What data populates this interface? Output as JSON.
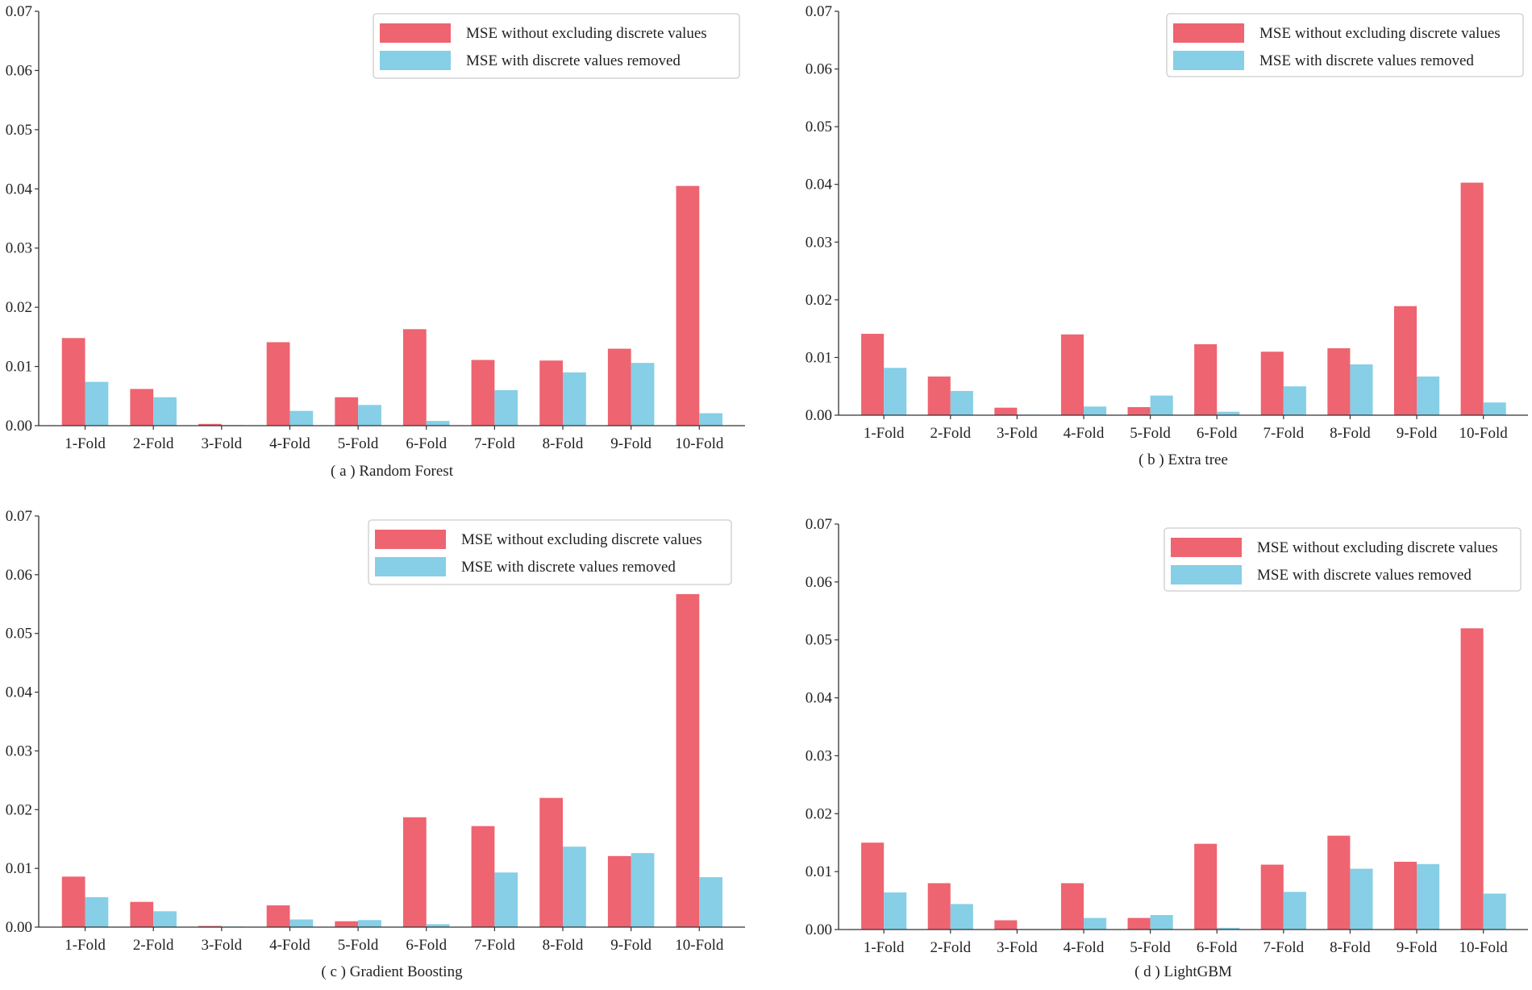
{
  "colors": {
    "series_a": "#ee6470",
    "series_b": "#86cfe6",
    "axis": "#333333",
    "legend_border": "#cccccc"
  },
  "legend": {
    "series_a": "MSE without excluding discrete values",
    "series_b": "MSE with discrete values removed"
  },
  "chart_data": [
    {
      "type": "bar",
      "title": "( a ) Random Forest",
      "categories": [
        "1-Fold",
        "2-Fold",
        "3-Fold",
        "4-Fold",
        "5-Fold",
        "6-Fold",
        "7-Fold",
        "8-Fold",
        "9-Fold",
        "10-Fold"
      ],
      "ylim": [
        0,
        0.07
      ],
      "yticks": [
        "0.00",
        "0.01",
        "0.02",
        "0.03",
        "0.04",
        "0.05",
        "0.06",
        "0.07"
      ],
      "legend_position": "top-right",
      "series": [
        {
          "name": "MSE without excluding discrete values",
          "values": [
            0.0148,
            0.0062,
            0.0003,
            0.0141,
            0.0048,
            0.0163,
            0.0111,
            0.011,
            0.013,
            0.0405
          ]
        },
        {
          "name": "MSE with discrete values removed",
          "values": [
            0.0074,
            0.0048,
            0.0001,
            0.0025,
            0.0035,
            0.0008,
            0.006,
            0.009,
            0.0106,
            0.0021
          ]
        }
      ]
    },
    {
      "type": "bar",
      "title": "( b ) Extra tree",
      "categories": [
        "1-Fold",
        "2-Fold",
        "3-Fold",
        "4-Fold",
        "5-Fold",
        "6-Fold",
        "7-Fold",
        "8-Fold",
        "9-Fold",
        "10-Fold"
      ],
      "ylim": [
        0,
        0.07
      ],
      "yticks": [
        "0.00",
        "0.01",
        "0.02",
        "0.03",
        "0.04",
        "0.05",
        "0.06",
        "0.07"
      ],
      "legend_position": "top-right",
      "series": [
        {
          "name": "MSE without excluding discrete values",
          "values": [
            0.0141,
            0.0067,
            0.0013,
            0.014,
            0.0014,
            0.0123,
            0.011,
            0.0116,
            0.0189,
            0.0403
          ]
        },
        {
          "name": "MSE with discrete values removed",
          "values": [
            0.0082,
            0.0042,
            0.0001,
            0.0015,
            0.0034,
            0.0006,
            0.005,
            0.0088,
            0.0067,
            0.0022
          ]
        }
      ]
    },
    {
      "type": "bar",
      "title": "( c ) Gradient Boosting",
      "categories": [
        "1-Fold",
        "2-Fold",
        "3-Fold",
        "4-Fold",
        "5-Fold",
        "6-Fold",
        "7-Fold",
        "8-Fold",
        "9-Fold",
        "10-Fold"
      ],
      "ylim": [
        0,
        0.07
      ],
      "yticks": [
        "0.00",
        "0.01",
        "0.02",
        "0.03",
        "0.04",
        "0.05",
        "0.06",
        "0.07"
      ],
      "legend_position": "top-right",
      "series": [
        {
          "name": "MSE without excluding discrete values",
          "values": [
            0.0086,
            0.0043,
            0.0002,
            0.0037,
            0.001,
            0.0187,
            0.0172,
            0.022,
            0.0121,
            0.0567
          ]
        },
        {
          "name": "MSE with discrete values removed",
          "values": [
            0.0051,
            0.0027,
            0.0001,
            0.0013,
            0.0012,
            0.0005,
            0.0093,
            0.0137,
            0.0126,
            0.0085
          ]
        }
      ]
    },
    {
      "type": "bar",
      "title": "( d ) LightGBM",
      "categories": [
        "1-Fold",
        "2-Fold",
        "3-Fold",
        "4-Fold",
        "5-Fold",
        "6-Fold",
        "7-Fold",
        "8-Fold",
        "9-Fold",
        "10-Fold"
      ],
      "ylim": [
        0,
        0.07
      ],
      "yticks": [
        "0.00",
        "0.01",
        "0.02",
        "0.03",
        "0.04",
        "0.05",
        "0.06",
        "0.07"
      ],
      "legend_position": "top-right",
      "series": [
        {
          "name": "MSE without excluding discrete values",
          "values": [
            0.015,
            0.008,
            0.0016,
            0.008,
            0.002,
            0.0148,
            0.0112,
            0.0162,
            0.0117,
            0.052
          ]
        },
        {
          "name": "MSE with discrete values removed",
          "values": [
            0.0064,
            0.0044,
            0.0001,
            0.002,
            0.0025,
            0.0003,
            0.0065,
            0.0105,
            0.0113,
            0.0062
          ]
        }
      ]
    }
  ]
}
